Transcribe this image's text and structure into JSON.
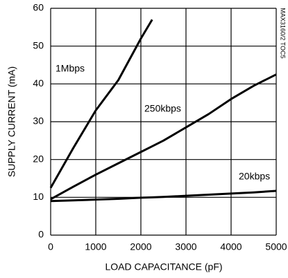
{
  "chart_data": {
    "type": "line",
    "xlabel": "LOAD CAPACITANCE (pF)",
    "ylabel": "SUPPLY CURRENT (mA)",
    "note": "MAX3160/2 TOC5",
    "x": [
      0,
      500,
      1000,
      1500,
      2000,
      2250,
      2500,
      3000,
      3500,
      4000,
      4500,
      5000
    ],
    "series": [
      {
        "name": "1Mbps",
        "color": "#000000",
        "values": [
          12.5,
          23,
          33,
          41,
          52,
          57,
          null,
          null,
          null,
          null,
          null,
          null
        ]
      },
      {
        "name": "250kbps",
        "color": "#000000",
        "values": [
          9.5,
          12.8,
          16,
          19,
          22,
          23.5,
          25,
          28.5,
          32,
          36,
          39.5,
          42.5
        ]
      },
      {
        "name": "20kbps",
        "color": "#000000",
        "values": [
          9,
          9.2,
          9.4,
          9.6,
          9.9,
          10,
          10.1,
          10.4,
          10.7,
          11,
          11.3,
          11.7
        ]
      }
    ],
    "xlim": [
      0,
      5000
    ],
    "xticks": [
      0,
      1000,
      2000,
      3000,
      4000,
      5000
    ],
    "ylim": [
      0,
      60
    ],
    "yticks": [
      0,
      10,
      20,
      30,
      40,
      50,
      60
    ],
    "grid": true
  }
}
